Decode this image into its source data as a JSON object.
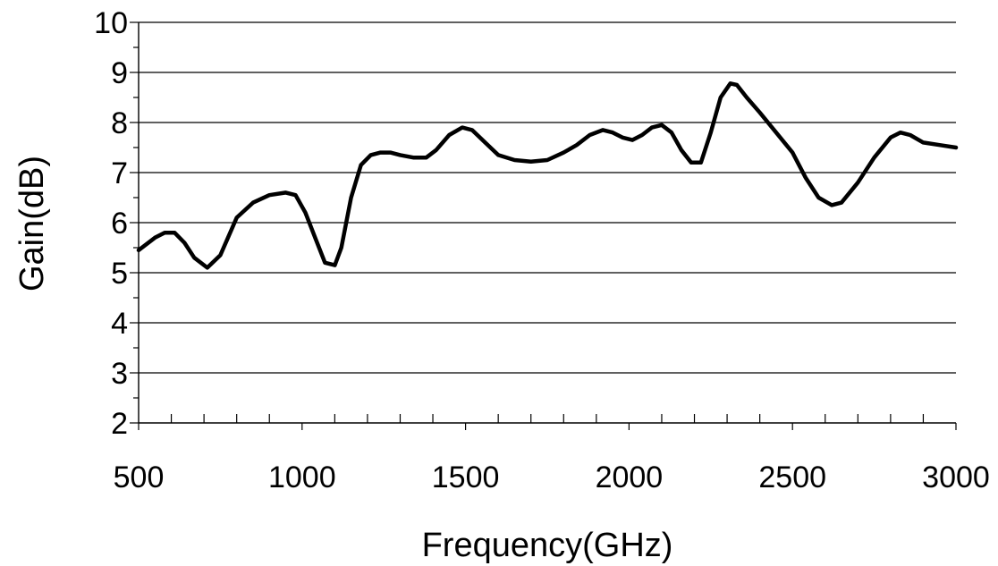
{
  "chart_data": {
    "type": "line",
    "title": "",
    "xlabel": "Frequency(GHz)",
    "ylabel": "Gain(dB)",
    "xlim": [
      500,
      3000
    ],
    "ylim": [
      2,
      10
    ],
    "x_ticks": [
      500,
      1000,
      1500,
      2000,
      2500,
      3000
    ],
    "y_ticks": [
      2,
      3,
      4,
      5,
      6,
      7,
      8,
      9,
      10
    ],
    "x_tick_labels": [
      "500",
      "1000",
      "1500",
      "2000",
      "2500",
      "3000"
    ],
    "y_tick_labels": [
      "2",
      "3",
      "4",
      "5",
      "6",
      "7",
      "8",
      "9",
      "10"
    ],
    "grid": "horizontal",
    "legend": "none",
    "line_color": "#000000",
    "series": [
      {
        "x": [
          500,
          550,
          580,
          610,
          640,
          670,
          710,
          750,
          800,
          850,
          900,
          950,
          980,
          1010,
          1040,
          1070,
          1100,
          1120,
          1150,
          1180,
          1210,
          1240,
          1270,
          1300,
          1340,
          1380,
          1410,
          1450,
          1490,
          1520,
          1560,
          1600,
          1650,
          1700,
          1750,
          1800,
          1840,
          1880,
          1920,
          1950,
          1980,
          2010,
          2040,
          2070,
          2100,
          2130,
          2160,
          2190,
          2220,
          2250,
          2280,
          2310,
          2330,
          2360,
          2400,
          2450,
          2500,
          2540,
          2580,
          2620,
          2650,
          2700,
          2750,
          2800,
          2830,
          2860,
          2900,
          2950,
          3000
        ],
        "y": [
          5.45,
          5.7,
          5.8,
          5.8,
          5.6,
          5.3,
          5.1,
          5.35,
          6.1,
          6.4,
          6.55,
          6.6,
          6.55,
          6.2,
          5.7,
          5.2,
          5.15,
          5.5,
          6.5,
          7.15,
          7.35,
          7.4,
          7.4,
          7.35,
          7.3,
          7.3,
          7.45,
          7.75,
          7.9,
          7.85,
          7.6,
          7.35,
          7.25,
          7.22,
          7.25,
          7.4,
          7.55,
          7.75,
          7.85,
          7.8,
          7.7,
          7.65,
          7.75,
          7.9,
          7.95,
          7.8,
          7.45,
          7.2,
          7.2,
          7.8,
          8.5,
          8.78,
          8.75,
          8.5,
          8.2,
          7.8,
          7.4,
          6.9,
          6.5,
          6.35,
          6.4,
          6.8,
          7.3,
          7.7,
          7.8,
          7.75,
          7.6,
          7.55,
          7.5
        ]
      }
    ]
  }
}
